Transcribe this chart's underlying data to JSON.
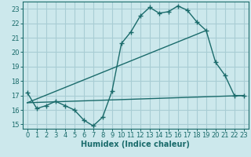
{
  "xlabel": "Humidex (Indice chaleur)",
  "background_color": "#cce8ec",
  "grid_color": "#a8cdd4",
  "line_color": "#1a6b6b",
  "spine_color": "#1a6b6b",
  "xlim": [
    -0.5,
    23.5
  ],
  "ylim": [
    14.7,
    23.5
  ],
  "xticks": [
    0,
    1,
    2,
    3,
    4,
    5,
    6,
    7,
    8,
    9,
    10,
    11,
    12,
    13,
    14,
    15,
    16,
    17,
    18,
    19,
    20,
    21,
    22,
    23
  ],
  "yticks": [
    15,
    16,
    17,
    18,
    19,
    20,
    21,
    22,
    23
  ],
  "line1_x": [
    0,
    1,
    2,
    3,
    4,
    5,
    6,
    7,
    8,
    9,
    10,
    11,
    12,
    13,
    14,
    15,
    16,
    17,
    18,
    19,
    20,
    21,
    22,
    23
  ],
  "line1_y": [
    17.2,
    16.1,
    16.3,
    16.6,
    16.3,
    16.0,
    15.3,
    14.9,
    15.5,
    17.3,
    20.6,
    21.4,
    22.5,
    23.1,
    22.7,
    22.8,
    23.2,
    22.9,
    22.1,
    21.5,
    19.3,
    18.4,
    17.0,
    17.0
  ],
  "line2_x": [
    0,
    23
  ],
  "line2_y": [
    16.5,
    17.0
  ],
  "line3_x": [
    0,
    19
  ],
  "line3_y": [
    16.5,
    21.5
  ],
  "tick_fontsize": 6,
  "xlabel_fontsize": 7
}
